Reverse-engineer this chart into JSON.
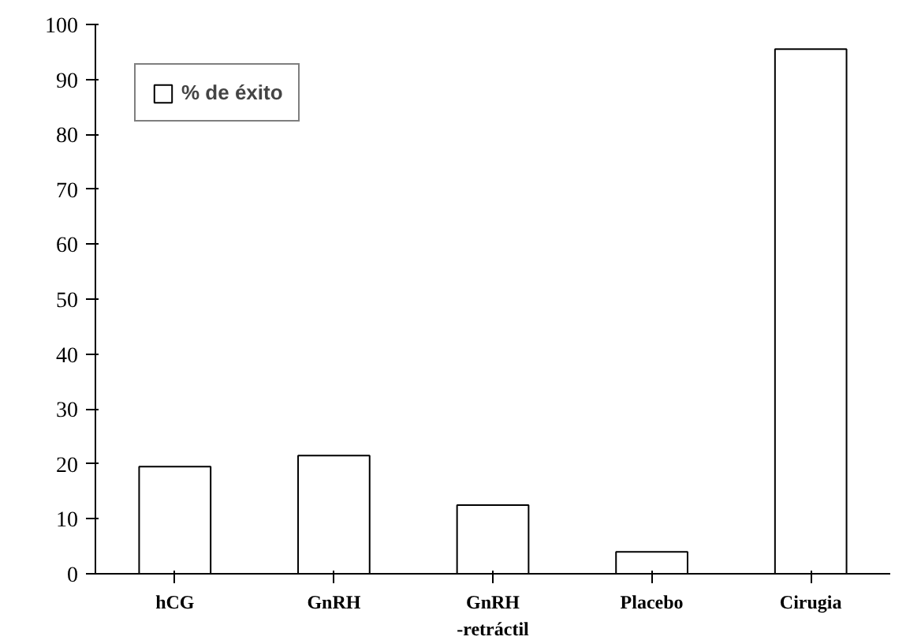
{
  "chart_data": {
    "type": "bar",
    "categories": [
      "hCG",
      "GnRH",
      "GnRH\n-retráctil",
      "Placebo",
      "Cirugia"
    ],
    "series": [
      {
        "name": "% de éxito",
        "color": "#ffffff",
        "values": [
          19.5,
          21.5,
          12.5,
          4,
          95.5
        ]
      }
    ],
    "ylim": [
      0,
      100
    ],
    "yticks": [
      0,
      10,
      20,
      30,
      40,
      50,
      60,
      70,
      80,
      90,
      100
    ],
    "grid": false,
    "legend": "top left"
  }
}
